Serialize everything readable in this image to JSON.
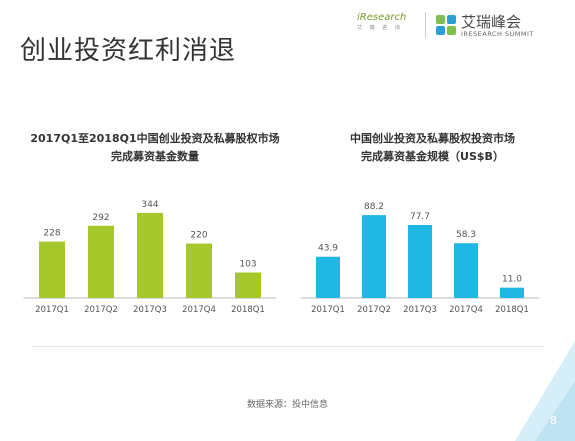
{
  "page": {
    "title": "创业投资红利消退",
    "source": "数据来源：投中信息",
    "page_number": "8"
  },
  "logos": {
    "iresearch": "iResearch",
    "iresearch_sub": "艾 瑞 咨 询",
    "summit_name": "艾瑞峰会",
    "summit_sub": "IRESEARCH SUMMIT"
  },
  "colors": {
    "green_bar": "#a6c82a",
    "blue_bar": "#1fb8e4",
    "logo_green": "#7cc24a",
    "logo_blue": "#2a9fd6",
    "corner_blue": "#d6eef8"
  },
  "chart_data": [
    {
      "type": "bar",
      "title_line1": "2017Q1至2018Q1中国创业投资及私募股权市场",
      "title_line2": "完成募资基金数量",
      "categories": [
        "2017Q1",
        "2017Q2",
        "2017Q3",
        "2017Q4",
        "2018Q1"
      ],
      "values": [
        228,
        292,
        344,
        220,
        103
      ],
      "ylim": [
        0,
        380
      ],
      "grid": false,
      "color": "#a6c82a"
    },
    {
      "type": "bar",
      "title_line1": "中国创业投资及私募股权投资市场",
      "title_line2": "完成募资基金规模（US$B）",
      "categories": [
        "2017Q1",
        "2017Q2",
        "2017Q3",
        "2017Q4",
        "2018Q1"
      ],
      "values": [
        43.9,
        88.2,
        77.7,
        58.3,
        11.0
      ],
      "value_labels": [
        "43.9",
        "88.2",
        "77.7",
        "58.3",
        "11.0"
      ],
      "ylim": [
        0,
        100
      ],
      "grid": false,
      "color": "#1fb8e4"
    }
  ]
}
